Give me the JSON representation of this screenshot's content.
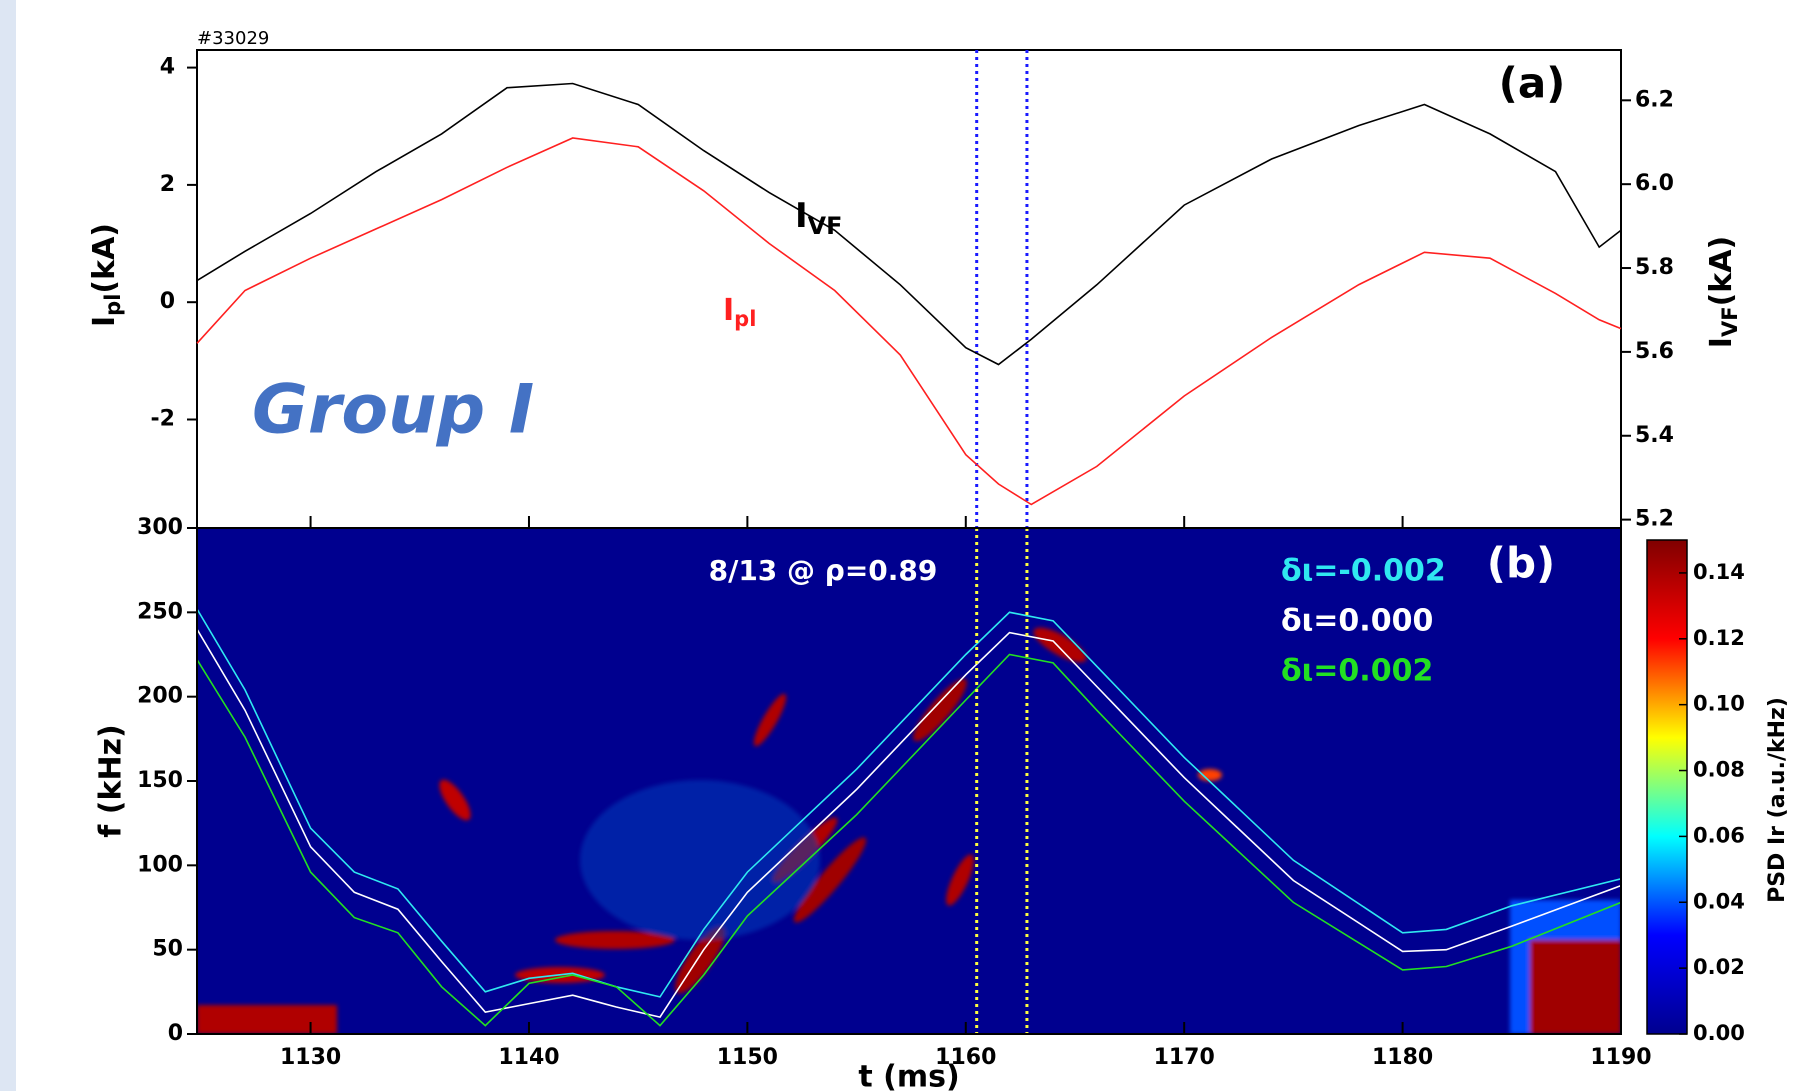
{
  "chart_data": [
    {
      "type": "line",
      "title": "#33029",
      "panel_label": "(a)",
      "annotation": "Group I",
      "ylabel": "Ipl(kA)",
      "y2label": "IVF(kA)",
      "x": [
        1124.8,
        1127,
        1130,
        1133,
        1136,
        1139,
        1142,
        1145,
        1148,
        1151,
        1154,
        1157,
        1160,
        1161.5,
        1163,
        1166,
        1170,
        1174,
        1178,
        1181,
        1184,
        1187,
        1189,
        1190
      ],
      "xlim": [
        1124.8,
        1190
      ],
      "ylim": [
        -3.85,
        4.3
      ],
      "yticks": [
        -2,
        0,
        2,
        4
      ],
      "y2lim": [
        5.18,
        6.32
      ],
      "y2ticks": [
        5.2,
        5.4,
        5.6,
        5.8,
        {
          "value": 6,
          "label": "6.0"
        },
        6.2
      ],
      "vlines": [
        1160.5,
        1162.8
      ],
      "vline_color": "#1a1aff",
      "series": [
        {
          "name": "Ipl",
          "color": "#ff2020",
          "values": [
            -0.7,
            0.2,
            0.75,
            1.25,
            1.75,
            2.3,
            2.8,
            2.65,
            1.9,
            1.0,
            0.2,
            -0.9,
            -2.6,
            -3.1,
            -3.45,
            -2.8,
            -1.6,
            -0.6,
            0.3,
            0.85,
            0.75,
            0.15,
            -0.3,
            -0.45
          ]
        },
        {
          "name": "IVF",
          "color": "#000000",
          "axis": "y2",
          "values": [
            5.77,
            5.84,
            5.93,
            6.03,
            6.12,
            6.23,
            6.24,
            6.19,
            6.08,
            5.98,
            5.89,
            5.76,
            5.61,
            5.57,
            5.63,
            5.76,
            5.95,
            6.06,
            6.14,
            6.19,
            6.12,
            6.03,
            5.85,
            5.89
          ]
        }
      ]
    },
    {
      "type": "spectrogram",
      "panel_label": "(b)",
      "annotation": "8/13 @ ρ=0.89",
      "xlabel": "t (ms)",
      "ylabel": "f (kHz)",
      "x": [
        1124.8,
        1127,
        1130,
        1132,
        1134,
        1136,
        1138,
        1140,
        1142,
        1144,
        1146,
        1148,
        1150,
        1155,
        1160,
        1162,
        1164,
        1166,
        1170,
        1175,
        1180,
        1182,
        1185,
        1190
      ],
      "xlim": [
        1124.8,
        1190
      ],
      "xticks": [
        1130,
        1140,
        1150,
        1160,
        1170,
        1180,
        1190
      ],
      "ylim": [
        0,
        300
      ],
      "yticks": [
        0,
        50,
        100,
        150,
        200,
        250,
        300
      ],
      "vlines": [
        1160.5,
        1162.8
      ],
      "vline_color": "#ffff40",
      "colorbar": {
        "label": "PSD Ir (a.u./kHz)",
        "clim": [
          0,
          0.15
        ],
        "colors": [
          "#00008f",
          "#0000ff",
          "#00ffff",
          "#ffff00",
          "#ff0000",
          "#800000"
        ],
        "ticks": [
          {
            "value": 0,
            "label": "0.00"
          },
          {
            "value": 0.02,
            "label": "0.02"
          },
          {
            "value": 0.04,
            "label": "0.04"
          },
          {
            "value": 0.06,
            "label": "0.06"
          },
          {
            "value": 0.08,
            "label": "0.08"
          },
          {
            "value": 0.1,
            "label": "0.10"
          },
          {
            "value": 0.12,
            "label": "0.12"
          },
          {
            "value": 0.14,
            "label": "0.14"
          }
        ]
      },
      "series": [
        {
          "name": "δι=-0.002",
          "color": "#30e8f0",
          "values": [
            252,
            204,
            122,
            96,
            86,
            55,
            25,
            33,
            36,
            28,
            22,
            62,
            96,
            157,
            225,
            250,
            245,
            218,
            164,
            103,
            60,
            62,
            76,
            92
          ]
        },
        {
          "name": "δι=0.000",
          "color": "#ffffff",
          "values": [
            240,
            192,
            111,
            84,
            74,
            43,
            13,
            18,
            23,
            16,
            10,
            50,
            84,
            145,
            213,
            238,
            233,
            206,
            152,
            91,
            49,
            50,
            64,
            88
          ]
        },
        {
          "name": "δι=0.002",
          "color": "#22e022",
          "values": [
            222,
            176,
            96,
            69,
            60,
            28,
            5,
            30,
            35,
            28,
            5,
            35,
            70,
            130,
            198,
            225,
            220,
            192,
            138,
            78,
            38,
            40,
            52,
            78
          ]
        }
      ]
    }
  ]
}
